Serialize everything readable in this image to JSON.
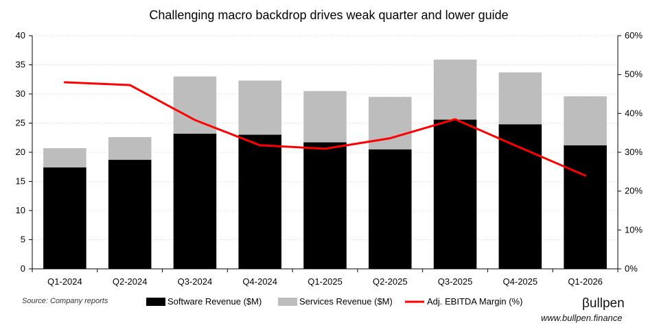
{
  "source_note": "Source: Company reports",
  "brand": {
    "name": "βullpen",
    "url": "www.bullpen.finance"
  },
  "colors": {
    "software": "#000000",
    "services": "#bdbdbd",
    "margin_line": "#ff0000",
    "grid": "#d9d9d9",
    "axis": "#000000"
  },
  "chart_data": {
    "type": "bar",
    "stacked": true,
    "title": "Challenging macro backdrop drives weak quarter and lower guide",
    "categories": [
      "Q1-2024",
      "Q2-2024",
      "Q3-2024",
      "Q4-2024",
      "Q1-2025",
      "Q2-2025",
      "Q3-2025",
      "Q4-2025",
      "Q1-2026"
    ],
    "series": [
      {
        "name": "Software Revenue ($M)",
        "kind": "bar",
        "axis": "left",
        "values": [
          17.4,
          18.7,
          23.2,
          23.0,
          21.7,
          20.5,
          25.6,
          24.8,
          21.2
        ]
      },
      {
        "name": "Services Revenue ($M)",
        "kind": "bar",
        "axis": "left",
        "values": [
          3.3,
          3.9,
          9.8,
          9.3,
          8.8,
          9.0,
          10.3,
          8.9,
          8.4
        ]
      },
      {
        "name": "Adj. EBITDA Margin (%)",
        "kind": "line",
        "axis": "right",
        "values": [
          48,
          47.3,
          38.3,
          31.8,
          30.9,
          33.6,
          38.5,
          31.2,
          24
        ]
      }
    ],
    "ylim": [
      0,
      40
    ],
    "yticks": [
      "0",
      "5",
      "10",
      "15",
      "20",
      "25",
      "30",
      "35",
      "40"
    ],
    "y2lim": [
      0,
      60
    ],
    "y2ticks": [
      "0%",
      "10%",
      "20%",
      "30%",
      "40%",
      "50%",
      "60%"
    ],
    "grid": true,
    "legend_position": "bottom"
  }
}
